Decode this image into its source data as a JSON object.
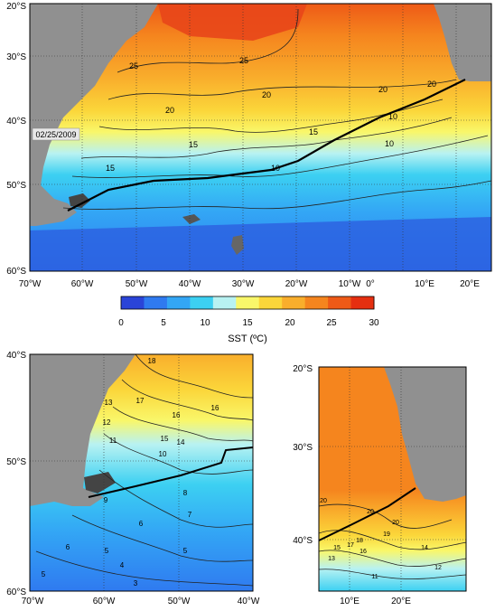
{
  "main_map": {
    "date_label": "02/25/2009",
    "lat_labels": [
      "20°S",
      "30°S",
      "40°S",
      "50°S",
      "60°S"
    ],
    "lon_labels": [
      "70°W",
      "60°W",
      "50°W",
      "40°W",
      "30°W",
      "20°W",
      "10°W",
      "0°",
      "10°E",
      "20°E"
    ],
    "contour_labels": [
      "25",
      "25",
      "20",
      "20",
      "20",
      "20",
      "15",
      "15",
      "15",
      "10",
      "10",
      "10"
    ]
  },
  "colorbar": {
    "ticks": [
      "0",
      "5",
      "10",
      "15",
      "20",
      "25",
      "30"
    ],
    "label": "SST (ºC)",
    "colors": [
      "#2a44d8",
      "#2f7af0",
      "#33a6f5",
      "#3cd0f2",
      "#b8f2f2",
      "#f9f76a",
      "#fbd63a",
      "#f9ae2c",
      "#f5851e",
      "#ee5a17",
      "#e52f10"
    ]
  },
  "inset_west": {
    "lat_labels": [
      "40°S",
      "50°S",
      "60°S"
    ],
    "lon_labels": [
      "70°W",
      "60°W",
      "50°W",
      "40°W"
    ],
    "contour_labels": [
      "18",
      "17",
      "16",
      "16",
      "15",
      "14",
      "13",
      "12",
      "11",
      "10",
      "9",
      "8",
      "7",
      "6",
      "5",
      "4",
      "5",
      "3",
      "5",
      "6"
    ]
  },
  "inset_east": {
    "lat_labels": [
      "20°S",
      "30°S",
      "40°S"
    ],
    "lon_labels": [
      "10°E",
      "20°E"
    ],
    "contour_labels": [
      "20",
      "20",
      "19",
      "18",
      "17",
      "16",
      "15",
      "14",
      "13",
      "12",
      "11",
      "20"
    ]
  }
}
